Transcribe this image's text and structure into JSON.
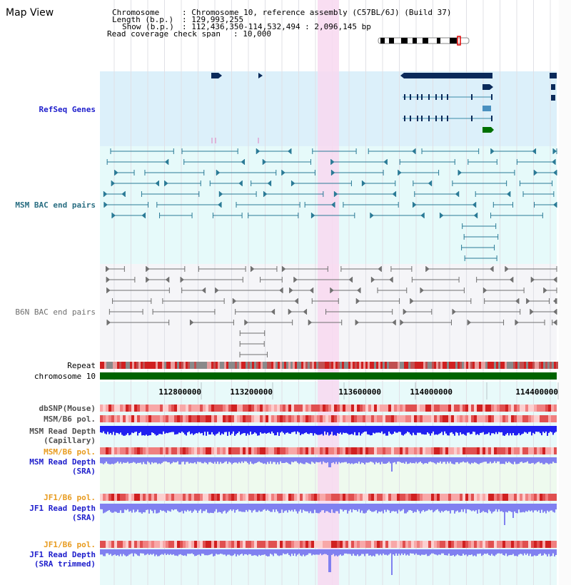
{
  "title": "Map View",
  "header": {
    "chromosome_key": "Chromosome",
    "chromosome_val": ": Chromosome 10, reference assembly (C57BL/6J) (Build 37)",
    "length_key": "Length (b.p.)",
    "length_val": ": 129,993,255",
    "show_key": "Show (b.p.)",
    "show_val": ": 112,436,350-114,532,494 : 2,096,145 bp",
    "span_key": "Read coverage check span",
    "span_val": ": 10,000"
  },
  "tracks": {
    "refseq": "RefSeq Genes",
    "msm_bac": "MSM BAC end pairs",
    "b6n_bac": "B6N BAC end pairs",
    "repeat": "Repeat",
    "chromosome": "chromosome 10",
    "dbsnp": "dbSNP(Mouse)",
    "msm_b6_pol_1": "MSM/B6 pol.",
    "msm_read_depth_cap_1": "MSM Read Depth",
    "msm_read_depth_cap_2": "(Capillary)",
    "msm_b6_pol_2": "MSM/B6 pol.",
    "msm_read_depth_sra_1": "MSM Read Depth",
    "msm_read_depth_sra_2": "(SRA)",
    "jf1_b6_pol_1": "JF1/B6 pol.",
    "jf1_read_depth_sra_1": "JF1 Read Depth",
    "jf1_read_depth_sra_2": "(SRA)",
    "jf1_b6_pol_2": "JF1/B6 pol.",
    "jf1_read_depth_trim_1": "JF1 Read Depth",
    "jf1_read_depth_trim_2": "(SRA trimmed)"
  },
  "axis_ticks": [
    "112800000",
    "113200000",
    "113600000",
    "114000000",
    "114400000"
  ],
  "colors": {
    "refseq_bg": "#dcf0fa",
    "msm_bg": "#e6fafa",
    "b6n_bg": "#f5f5f8",
    "lower_bg": "#e8fafa",
    "highlight": "#f8d8f0",
    "label_blue": "#1e1ecc",
    "label_teal": "#2a6e82",
    "label_orange": "#e89b1e",
    "gene_navy": "#0a2a5a",
    "bac_teal": "#2a7a96",
    "bac_gray": "#707070",
    "chrom_green": "#006400",
    "depth_blue": "#2020f0",
    "depth_light": "#8080f0"
  }
}
